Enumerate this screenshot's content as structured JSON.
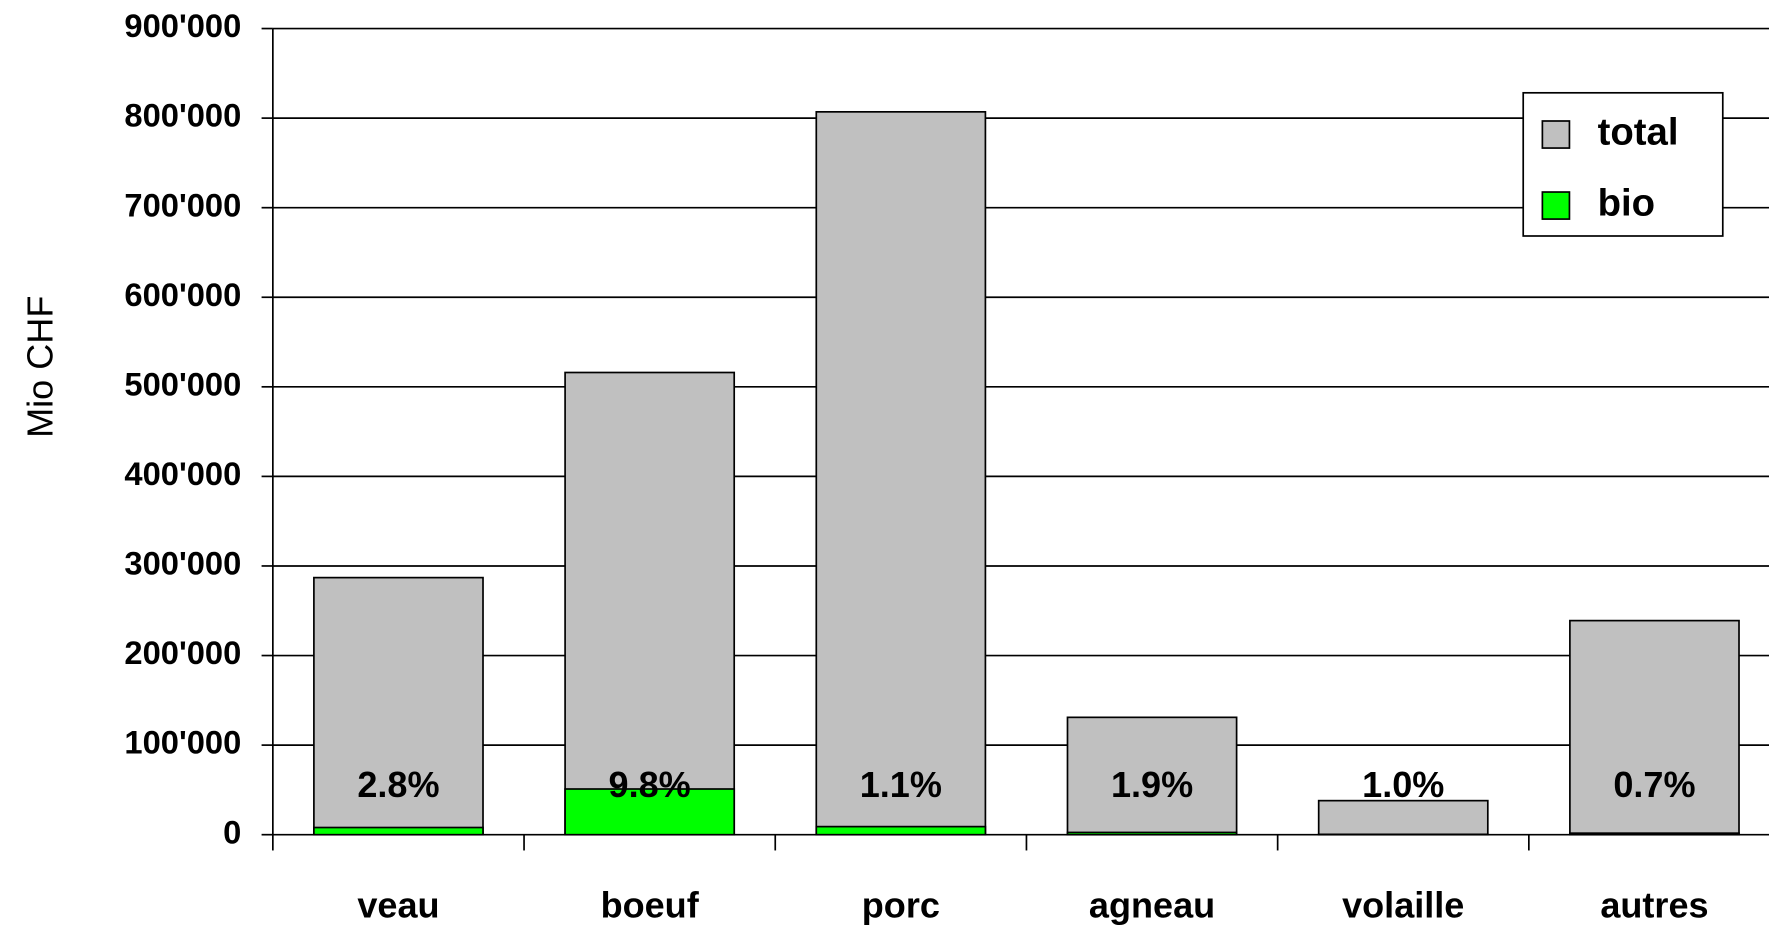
{
  "chart_data": {
    "type": "bar",
    "y_label": "Mio CHF",
    "categories": [
      "veau",
      "boeuf",
      "porc",
      "agneau",
      "volaille",
      "autres"
    ],
    "series": [
      {
        "name": "total",
        "color": "#c0c0c0",
        "values": [
          287000,
          516000,
          807000,
          131000,
          38000,
          239000
        ]
      },
      {
        "name": "bio",
        "color": "#00ff00",
        "values": [
          8000,
          51000,
          9000,
          2500,
          380,
          1700
        ]
      }
    ],
    "annotations": [
      "2.8%",
      "9.8%",
      "1.1%",
      "1.9%",
      "1.0%",
      "0.7%"
    ],
    "ylim": [
      0,
      900000
    ],
    "yticks": [
      0,
      {
        "value": 100000,
        "label": "100'000"
      },
      {
        "value": 200000,
        "label": "200'000"
      },
      {
        "value": 300000,
        "label": "300'000"
      },
      {
        "value": 400000,
        "label": "400'000"
      },
      {
        "value": 500000,
        "label": "500'000"
      },
      {
        "value": 600000,
        "label": "600'000"
      },
      {
        "value": 700000,
        "label": "700'000"
      },
      {
        "value": 800000,
        "label": "800'000"
      },
      {
        "value": 900000,
        "label": "900'000"
      }
    ],
    "grid": true,
    "legend": "top-right",
    "overlap": true
  }
}
